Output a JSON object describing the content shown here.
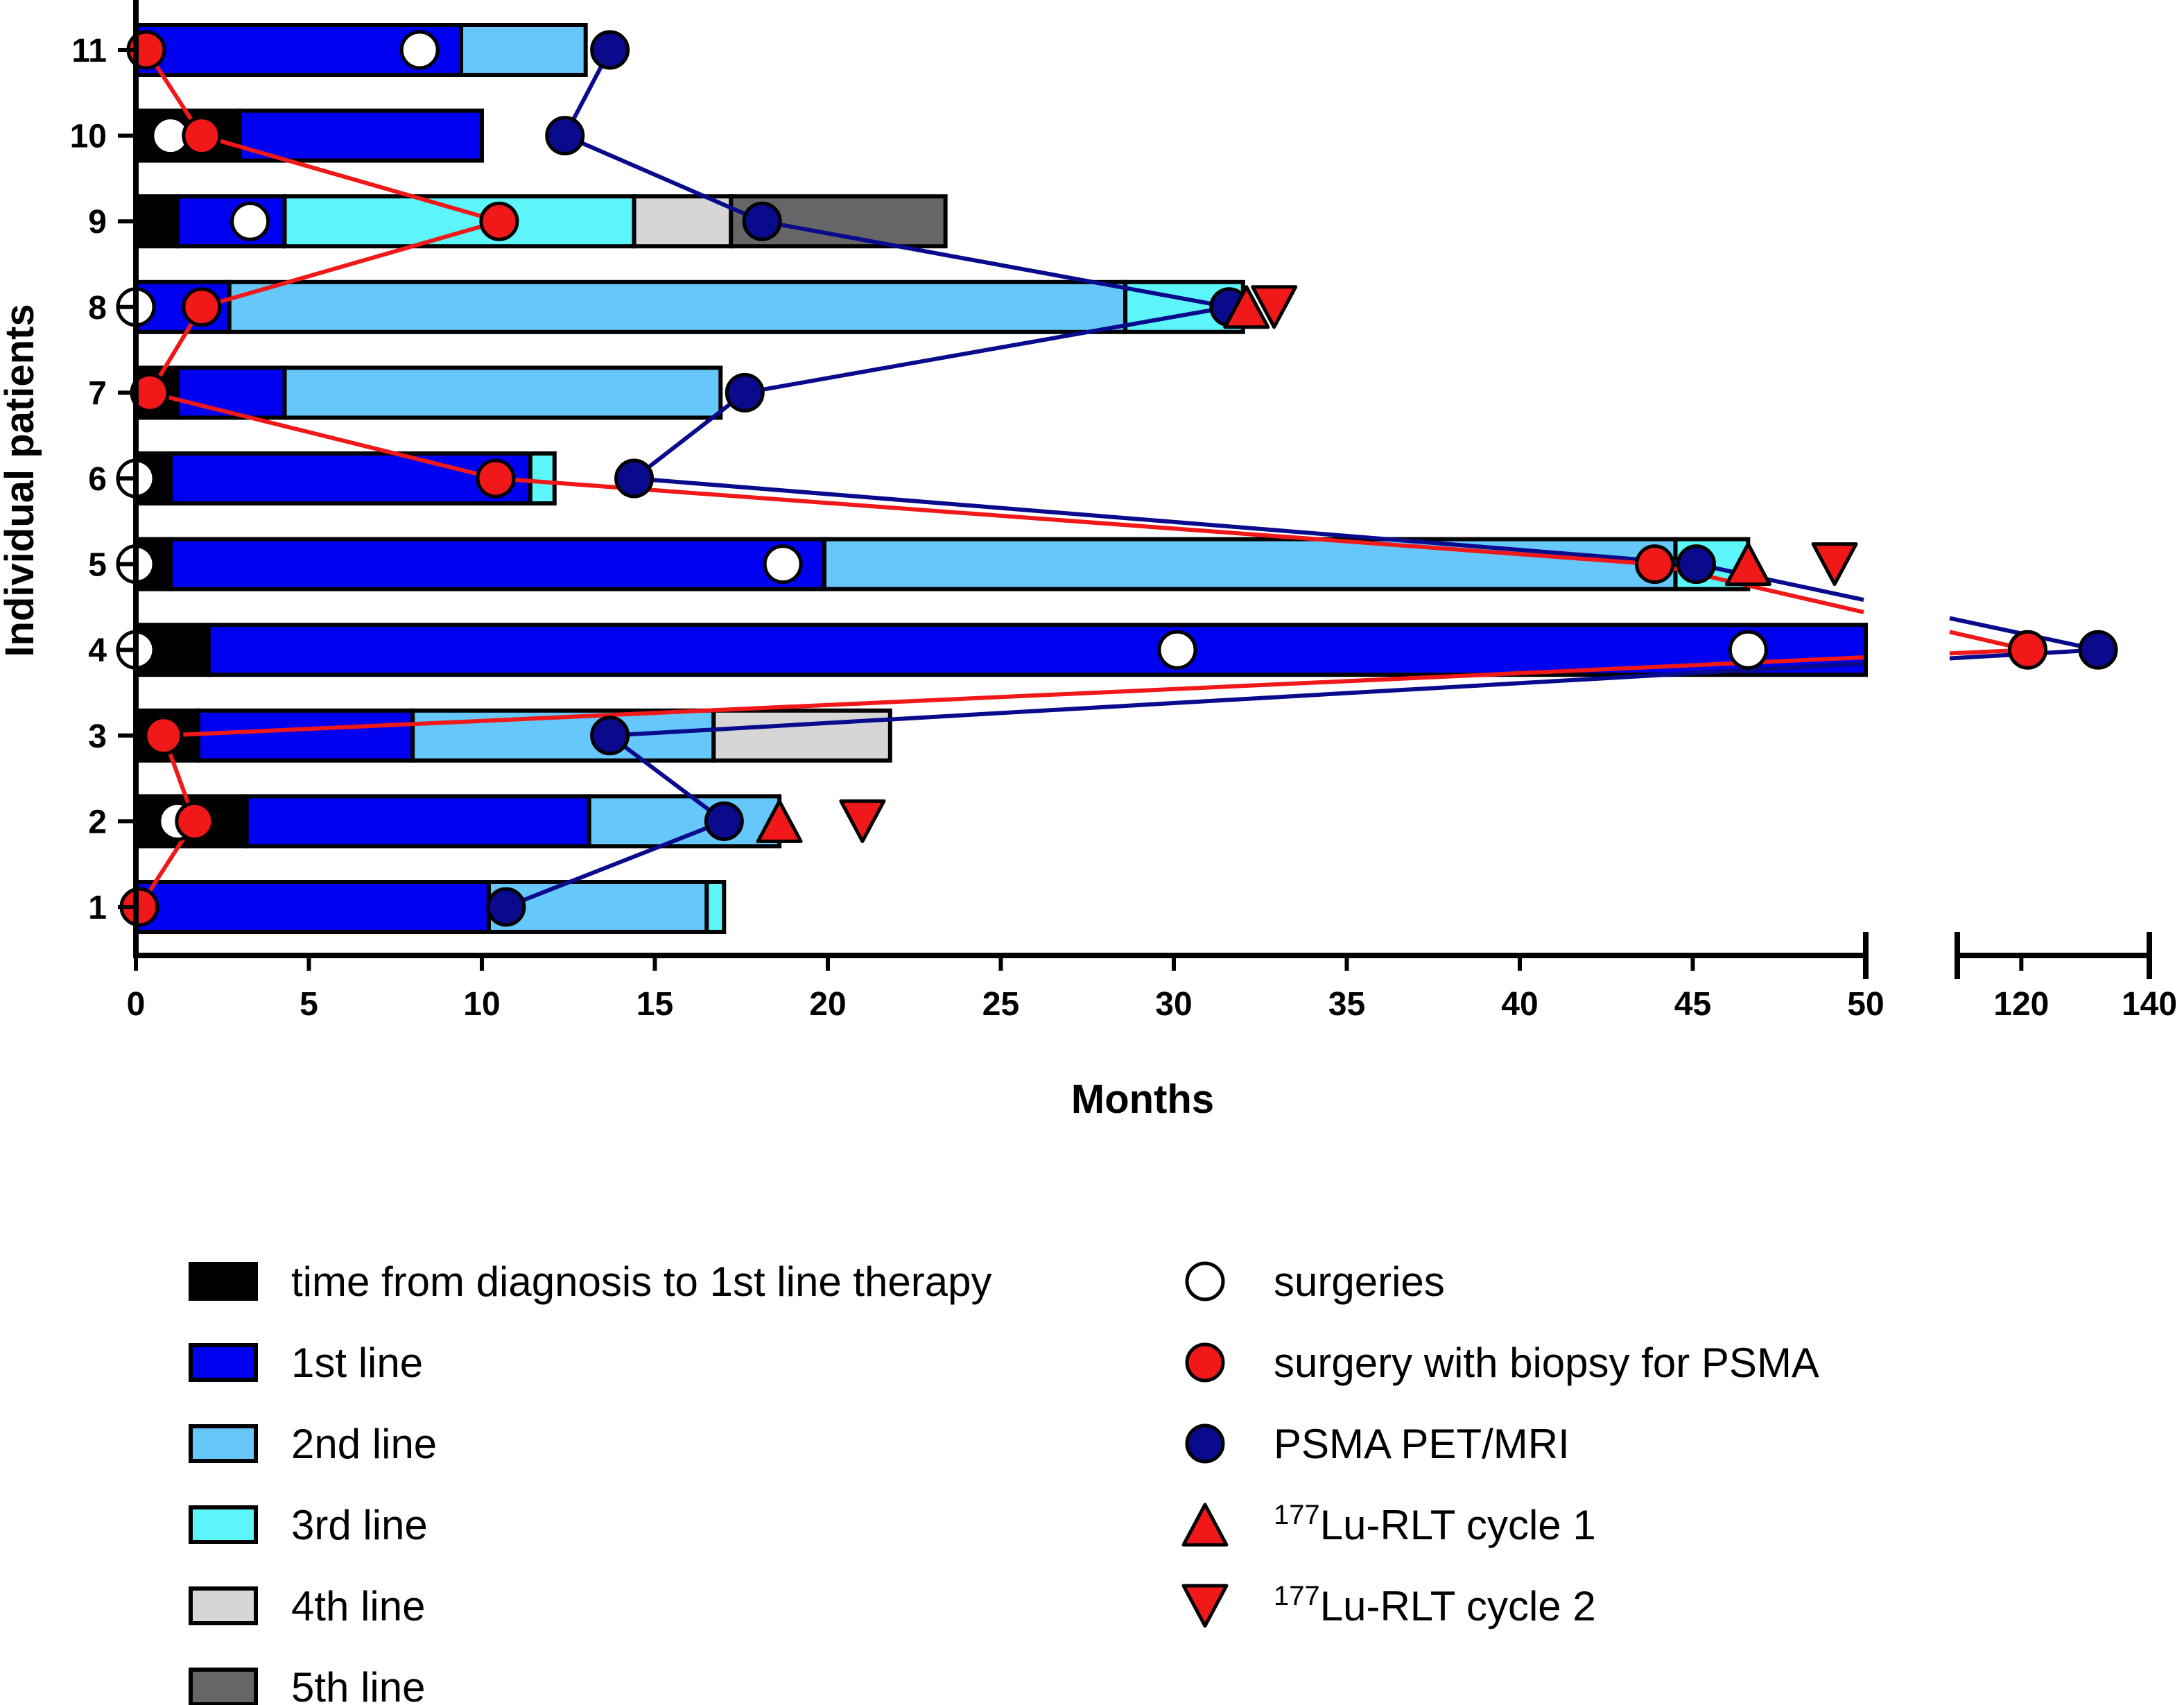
{
  "chart_data": {
    "type": "timeline",
    "xlabel": "Months",
    "ylabel": "Individual patients",
    "xaxis_segments": [
      {
        "range": [
          0,
          50
        ],
        "ticks": [
          0,
          5,
          10,
          15,
          20,
          25,
          30,
          35,
          40,
          45,
          50
        ]
      },
      {
        "range": [
          110,
          140
        ],
        "ticks": [
          120,
          140
        ]
      }
    ],
    "ylim": [
      0.3,
      11.6
    ],
    "yticks": [
      1,
      2,
      3,
      4,
      5,
      6,
      7,
      8,
      9,
      10,
      11
    ],
    "bar_categories": [
      {
        "key": "diag",
        "label": "time from diagnosis to 1st line therapy",
        "color": "#000000"
      },
      {
        "key": "l1",
        "label": "1st line",
        "color": "#0000F0"
      },
      {
        "key": "l2",
        "label": "2nd line",
        "color": "#66C8FA"
      },
      {
        "key": "l3",
        "label": "3rd line",
        "color": "#5CF5FA"
      },
      {
        "key": "l4",
        "label": "4th line",
        "color": "#D6D6D6"
      },
      {
        "key": "l5",
        "label": "5th line",
        "color": "#666666"
      }
    ],
    "marker_categories": [
      {
        "key": "surgery",
        "label": "surgeries",
        "fill": "#FFFFFF"
      },
      {
        "key": "biopsy",
        "label": "surgery with biopsy for PSMA",
        "fill": "#F01818"
      },
      {
        "key": "pet",
        "label": "PSMA PET/MRI",
        "fill": "#0A0A8C"
      },
      {
        "key": "lu1",
        "label_sup": "177",
        "label": "Lu-RLT cycle 1",
        "fill": "#F01818"
      },
      {
        "key": "lu2",
        "label_sup": "177",
        "label": "Lu-RLT cycle 2",
        "fill": "#F01818"
      }
    ],
    "patients": [
      {
        "id": 1,
        "segments": [
          [
            "l1",
            0,
            10.2
          ],
          [
            "l2",
            10.2,
            16.5
          ],
          [
            "l3",
            16.5,
            17.0
          ]
        ],
        "surgery": [],
        "biopsy": [
          0.1
        ],
        "pet": [
          10.7
        ],
        "lu1": [],
        "lu2": []
      },
      {
        "id": 2,
        "segments": [
          [
            "diag",
            0,
            3.2
          ],
          [
            "l1",
            3.2,
            13.1
          ],
          [
            "l2",
            13.1,
            18.6
          ]
        ],
        "surgery": [
          1.2
        ],
        "biopsy": [
          1.7
        ],
        "pet": [
          17.0
        ],
        "lu1": [
          18.6
        ],
        "lu2": [
          21.0
        ]
      },
      {
        "id": 3,
        "segments": [
          [
            "diag",
            0,
            1.8
          ],
          [
            "l1",
            1.8,
            8.0
          ],
          [
            "l2",
            8.0,
            16.7
          ],
          [
            "l4",
            16.7,
            21.8
          ]
        ],
        "surgery": [],
        "biopsy": [
          0.8
        ],
        "pet": [
          13.7
        ],
        "lu1": [],
        "lu2": []
      },
      {
        "id": 4,
        "segments": [
          [
            "diag",
            0,
            2.1
          ],
          [
            "l1",
            2.1,
            50.0
          ]
        ],
        "surgery": [
          0,
          30.1,
          46.6
        ],
        "biopsy": [
          121
        ],
        "pet": [
          132
        ],
        "lu1": [],
        "lu2": []
      },
      {
        "id": 5,
        "segments": [
          [
            "diag",
            0,
            1.0
          ],
          [
            "l1",
            1.0,
            19.9
          ],
          [
            "l2",
            19.9,
            44.5
          ],
          [
            "l3",
            44.5,
            46.6
          ]
        ],
        "surgery": [
          0,
          18.7
        ],
        "biopsy": [
          43.9
        ],
        "pet": [
          45.1
        ],
        "lu1": [
          46.6
        ],
        "lu2": [
          49.1
        ]
      },
      {
        "id": 6,
        "segments": [
          [
            "diag",
            0,
            1.0
          ],
          [
            "l1",
            1.0,
            11.4
          ],
          [
            "l3",
            11.4,
            12.1
          ]
        ],
        "surgery": [
          0
        ],
        "biopsy": [
          10.4
        ],
        "pet": [
          14.4
        ],
        "lu1": [],
        "lu2": []
      },
      {
        "id": 7,
        "segments": [
          [
            "diag",
            0,
            1.2
          ],
          [
            "l1",
            1.2,
            4.3
          ],
          [
            "l2",
            4.3,
            16.9
          ]
        ],
        "surgery": [],
        "biopsy": [
          0.4
        ],
        "pet": [
          17.6
        ],
        "lu1": [],
        "lu2": []
      },
      {
        "id": 8,
        "segments": [
          [
            "l1",
            0,
            2.7
          ],
          [
            "l2",
            2.7,
            28.6
          ],
          [
            "l3",
            28.6,
            32.0
          ]
        ],
        "surgery": [
          0
        ],
        "biopsy": [
          1.9
        ],
        "pet": [
          31.6
        ],
        "lu1": [
          32.1
        ],
        "lu2": [
          32.9
        ]
      },
      {
        "id": 9,
        "segments": [
          [
            "diag",
            0,
            1.2
          ],
          [
            "l1",
            1.2,
            4.3
          ],
          [
            "l3",
            4.3,
            14.4
          ],
          [
            "l4",
            14.4,
            17.2
          ],
          [
            "l5",
            17.2,
            23.4
          ]
        ],
        "surgery": [
          3.3
        ],
        "biopsy": [
          10.5
        ],
        "pet": [
          18.1
        ],
        "lu1": [],
        "lu2": []
      },
      {
        "id": 10,
        "segments": [
          [
            "diag",
            0,
            3.0
          ],
          [
            "l1",
            3.0,
            10.0
          ]
        ],
        "surgery": [
          1.0
        ],
        "biopsy": [
          1.9
        ],
        "pet": [
          12.4
        ],
        "lu1": [],
        "lu2": []
      },
      {
        "id": 11,
        "segments": [
          [
            "l1",
            0,
            9.4
          ],
          [
            "l2",
            9.4,
            13.0
          ]
        ],
        "surgery": [
          8.2
        ],
        "biopsy": [
          0.3
        ],
        "pet": [
          13.7
        ],
        "lu1": [],
        "lu2": []
      }
    ],
    "biopsy_line_color": "#F01818",
    "pet_line_color": "#0A0A8C"
  }
}
